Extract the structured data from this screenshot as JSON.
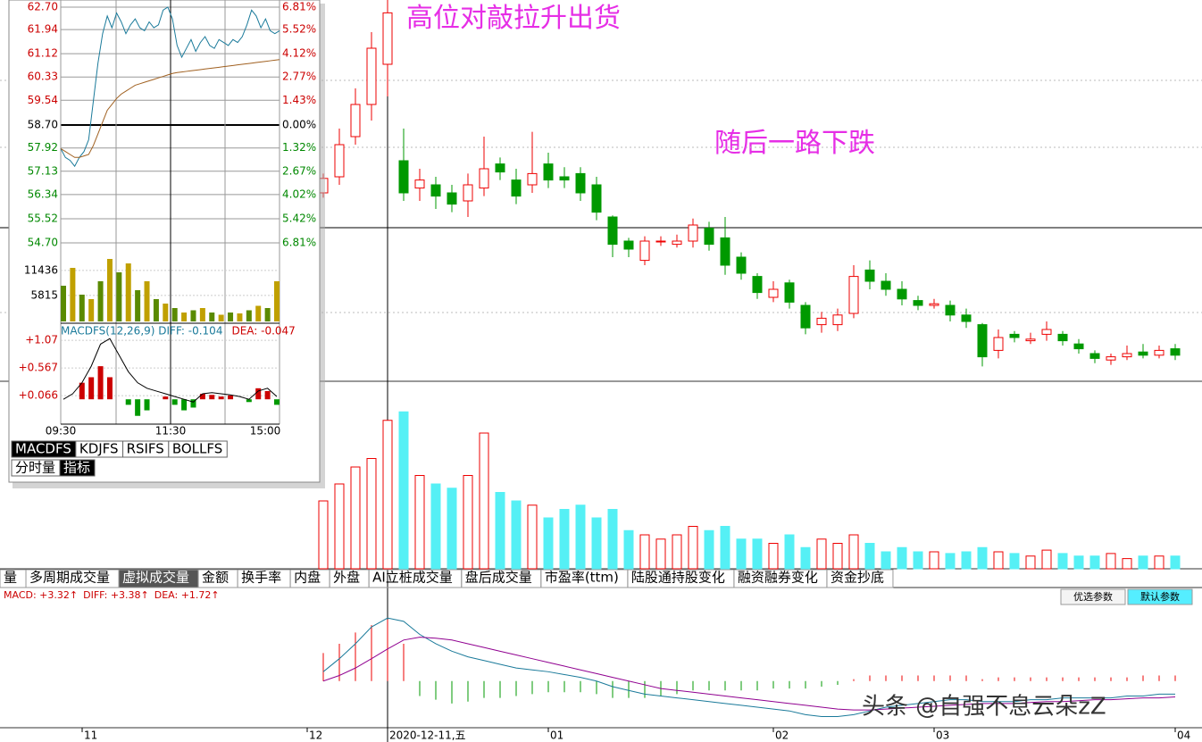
{
  "annotations": [
    "高位对敲拉升出货",
    "随后一路下跌"
  ],
  "main": {
    "ylim": [
      40,
      64
    ],
    "candles": [
      [
        52.0,
        53.2,
        51.7,
        52.9
      ],
      [
        53.0,
        56.0,
        52.5,
        55.0
      ],
      [
        55.5,
        58.5,
        55.0,
        57.5
      ],
      [
        57.5,
        62.0,
        56.5,
        61.0
      ],
      [
        60.0,
        64.0,
        58.0,
        63.2
      ],
      [
        54.0,
        56.0,
        51.5,
        52.0
      ],
      [
        52.3,
        53.5,
        51.5,
        52.8
      ],
      [
        52.5,
        53.0,
        51.0,
        51.8
      ],
      [
        52.0,
        52.5,
        50.8,
        51.3
      ],
      [
        51.5,
        53.2,
        50.5,
        52.5
      ],
      [
        52.3,
        55.5,
        51.8,
        53.5
      ],
      [
        53.8,
        54.2,
        52.8,
        53.3
      ],
      [
        52.8,
        53.5,
        51.3,
        51.8
      ],
      [
        52.5,
        55.8,
        52.0,
        53.2
      ],
      [
        53.8,
        54.5,
        52.3,
        52.8
      ],
      [
        53.0,
        53.6,
        52.3,
        52.8
      ],
      [
        53.2,
        53.6,
        51.5,
        52.0
      ],
      [
        52.5,
        53.0,
        50.3,
        50.8
      ],
      [
        50.5,
        50.6,
        48.0,
        48.8
      ],
      [
        49.0,
        49.2,
        48.0,
        48.5
      ],
      [
        47.8,
        49.3,
        47.5,
        49.0
      ],
      [
        49.0,
        49.3,
        48.7,
        49.0
      ],
      [
        48.8,
        49.4,
        48.6,
        49.0
      ],
      [
        49.0,
        50.4,
        48.6,
        50.0
      ],
      [
        49.8,
        50.2,
        48.4,
        48.8
      ],
      [
        49.2,
        50.5,
        46.9,
        47.5
      ],
      [
        48.0,
        48.3,
        46.6,
        47.0
      ],
      [
        46.8,
        47.0,
        45.4,
        45.8
      ],
      [
        45.5,
        46.5,
        45.2,
        46.0
      ],
      [
        46.4,
        46.6,
        44.8,
        45.2
      ],
      [
        45.0,
        45.2,
        43.2,
        43.6
      ],
      [
        43.8,
        44.6,
        43.3,
        44.2
      ],
      [
        43.8,
        44.8,
        43.4,
        44.4
      ],
      [
        44.5,
        47.5,
        44.2,
        46.8
      ],
      [
        47.2,
        47.8,
        46.0,
        46.5
      ],
      [
        46.5,
        47.0,
        45.6,
        46.0
      ],
      [
        46.0,
        46.5,
        45.0,
        45.4
      ],
      [
        45.3,
        45.6,
        44.7,
        45.0
      ],
      [
        45.0,
        45.4,
        44.8,
        45.1
      ],
      [
        45.0,
        45.3,
        44.0,
        44.4
      ],
      [
        44.4,
        44.8,
        43.6,
        44.0
      ],
      [
        43.8,
        43.9,
        41.2,
        41.8
      ],
      [
        42.2,
        43.5,
        41.7,
        43.0
      ],
      [
        43.2,
        43.4,
        42.7,
        43.0
      ],
      [
        42.8,
        43.3,
        42.6,
        42.9
      ],
      [
        43.2,
        44.0,
        42.8,
        43.5
      ],
      [
        43.2,
        43.4,
        42.5,
        42.8
      ],
      [
        42.6,
        42.9,
        42.0,
        42.3
      ],
      [
        42.0,
        42.2,
        41.4,
        41.7
      ],
      [
        41.6,
        42.0,
        41.3,
        41.8
      ],
      [
        41.8,
        42.5,
        41.6,
        42.0
      ],
      [
        42.1,
        42.6,
        41.7,
        41.9
      ],
      [
        41.9,
        42.5,
        41.7,
        42.2
      ],
      [
        42.3,
        42.6,
        41.6,
        41.9
      ]
    ],
    "volume_ylim": [
      0,
      200
    ],
    "volume": [
      80,
      100,
      120,
      130,
      175,
      185,
      110,
      100,
      95,
      110,
      160,
      90,
      80,
      75,
      60,
      70,
      75,
      60,
      70,
      45,
      40,
      35,
      40,
      50,
      45,
      50,
      35,
      35,
      30,
      40,
      25,
      35,
      30,
      40,
      30,
      20,
      25,
      20,
      20,
      18,
      20,
      25,
      20,
      18,
      15,
      22,
      18,
      15,
      15,
      18,
      12,
      15,
      15,
      15
    ]
  },
  "tabs": [
    "量",
    "多周期成交量",
    "虚拟成交量",
    "金额",
    "换手率",
    "内盘",
    "外盘",
    "AI立桩成交量",
    "盘后成交量",
    "市盈率(ttm)",
    "陆股通持股变化",
    "融资融券变化",
    "资金抄底"
  ],
  "macd": {
    "labels": [
      "MACD: +3.32↑",
      "DIFF: +3.38↑",
      "DEA: +1.72↑"
    ],
    "buttons": [
      "优选参数",
      "默认参数"
    ],
    "ylim": [
      -2.5,
      4.2
    ],
    "hist": [
      1.5,
      2.0,
      2.6,
      3.0,
      3.3,
      2.0,
      -0.8,
      -1.0,
      -1.2,
      -1.1,
      -0.9,
      -0.9,
      -0.8,
      -0.7,
      -0.6,
      -0.6,
      -0.6,
      -0.7,
      -0.9,
      -0.9,
      -0.9,
      -0.8,
      -0.7,
      -0.5,
      -0.5,
      -0.5,
      -0.5,
      -0.5,
      -0.4,
      -0.4,
      -0.4,
      -0.3,
      -0.2,
      0.1,
      0.3,
      0.3,
      0.3,
      0.3,
      0.3,
      0.3,
      0.3,
      0.1,
      0.2,
      0.2,
      0.2,
      0.2,
      0.2,
      0.2,
      0.2,
      0.2,
      0.2,
      0.3,
      0.3,
      0.3
    ],
    "diff": [
      0.5,
      1.2,
      2.0,
      2.9,
      3.38,
      3.2,
      2.5,
      2.0,
      1.6,
      1.3,
      1.1,
      0.9,
      0.7,
      0.6,
      0.5,
      0.35,
      0.2,
      0.0,
      -0.3,
      -0.5,
      -0.7,
      -0.8,
      -0.9,
      -1.0,
      -1.1,
      -1.2,
      -1.3,
      -1.4,
      -1.5,
      -1.6,
      -1.8,
      -1.9,
      -1.9,
      -1.8,
      -1.6,
      -1.4,
      -1.3,
      -1.2,
      -1.1,
      -1.0,
      -1.0,
      -1.1,
      -1.1,
      -1.1,
      -1.0,
      -1.0,
      -0.9,
      -0.9,
      -0.9,
      -0.9,
      -0.8,
      -0.8,
      -0.7,
      -0.7
    ],
    "dea": [
      0.0,
      0.3,
      0.7,
      1.2,
      1.72,
      2.2,
      2.35,
      2.3,
      2.2,
      2.0,
      1.8,
      1.6,
      1.4,
      1.2,
      1.0,
      0.8,
      0.6,
      0.4,
      0.2,
      0.0,
      -0.2,
      -0.4,
      -0.5,
      -0.6,
      -0.7,
      -0.8,
      -0.9,
      -1.0,
      -1.1,
      -1.2,
      -1.3,
      -1.4,
      -1.5,
      -1.55,
      -1.55,
      -1.5,
      -1.45,
      -1.4,
      -1.35,
      -1.3,
      -1.25,
      -1.2,
      -1.2,
      -1.2,
      -1.15,
      -1.1,
      -1.1,
      -1.05,
      -1.0,
      -1.0,
      -0.95,
      -0.9,
      -0.9,
      -0.85
    ]
  },
  "x_labels": [
    {
      "index": -15,
      "label": "11"
    },
    {
      "index": -1,
      "label": "12"
    },
    {
      "index": 4,
      "label": "2020-12-11,五"
    },
    {
      "index": 14,
      "label": "01"
    },
    {
      "index": 28,
      "label": "02"
    },
    {
      "index": 38,
      "label": "03"
    },
    {
      "index": 53,
      "label": "04"
    }
  ],
  "watermark": "头条 @自强不息云朵zZ",
  "popup": {
    "ylim": [
      54.7,
      62.7
    ],
    "yticks": [
      {
        "value": 62.7,
        "label": "62.70"
      },
      {
        "value": 61.94,
        "label": "61.94"
      },
      {
        "value": 61.12,
        "label": "61.12"
      },
      {
        "value": 60.33,
        "label": "60.33"
      },
      {
        "value": 59.54,
        "label": "59.54"
      },
      {
        "value": 58.7,
        "label": "58.70"
      },
      {
        "value": 57.92,
        "label": "57.92"
      },
      {
        "value": 57.13,
        "label": "57.13"
      },
      {
        "value": 56.34,
        "label": "56.34"
      },
      {
        "value": 55.52,
        "label": "55.52"
      },
      {
        "value": 54.7,
        "label": "54.70"
      }
    ],
    "pct_labels": [
      "6.81%",
      "5.52%",
      "4.12%",
      "2.77%",
      "1.43%",
      "0.00%",
      "1.32%",
      "2.67%",
      "4.02%",
      "5.42%",
      "6.81%"
    ],
    "price": [
      57.9,
      57.6,
      57.5,
      57.3,
      57.6,
      57.8,
      58.2,
      59.5,
      60.8,
      61.8,
      62.4,
      62.0,
      62.5,
      62.2,
      61.8,
      62.1,
      62.3,
      62.0,
      61.9,
      62.2,
      62.0,
      62.1,
      62.6,
      62.7,
      62.3,
      61.4,
      61.0,
      61.3,
      61.6,
      61.2,
      61.5,
      61.7,
      61.4,
      61.3,
      61.6,
      61.5,
      61.4,
      61.6,
      61.5,
      61.7,
      62.1,
      62.6,
      62.4,
      62.0,
      62.3,
      61.9,
      61.8,
      61.9
    ],
    "avg": [
      57.9,
      57.8,
      57.7,
      57.6,
      57.6,
      57.65,
      57.7,
      58.0,
      58.4,
      58.8,
      59.2,
      59.4,
      59.6,
      59.75,
      59.85,
      59.95,
      60.05,
      60.1,
      60.15,
      60.2,
      60.25,
      60.3,
      60.35,
      60.4,
      60.45,
      60.48,
      60.5,
      60.52,
      60.54,
      60.56,
      60.58,
      60.6,
      60.62,
      60.64,
      60.66,
      60.68,
      60.7,
      60.72,
      60.74,
      60.76,
      60.78,
      60.8,
      60.82,
      60.84,
      60.86,
      60.88,
      60.9,
      60.92
    ],
    "vol_ylim": [
      0,
      17000
    ],
    "vol_ticks": [
      11436,
      5815
    ],
    "volume": [
      8000,
      12000,
      6000,
      5000,
      9000,
      14000,
      11000,
      13000,
      7000,
      9000,
      5000,
      4000,
      3000,
      2000,
      2500,
      3000,
      2000,
      1500,
      2000,
      1800,
      2500,
      3500,
      3000,
      9000
    ],
    "macd_title": "MACDFS(12,26,9) DIFF: -0.104",
    "macd_dea": "DEA: -0.047",
    "macd_ylim": [
      -0.45,
      1.33
    ],
    "macd_ticks": [
      {
        "value": 1.07,
        "label": "+1.07"
      },
      {
        "value": 0.567,
        "label": "+0.567"
      },
      {
        "value": 0.066,
        "label": "+0.066"
      }
    ],
    "macd_hist": [
      0,
      0,
      0.3,
      0.4,
      0.6,
      0.4,
      0,
      -0.1,
      -0.3,
      -0.2,
      0,
      0.05,
      -0.1,
      -0.2,
      -0.15,
      0.1,
      0.08,
      0.05,
      0.07,
      0,
      -0.05,
      0.2,
      0.15,
      -0.1
    ],
    "macd_diff": [
      0,
      0.1,
      0.3,
      0.6,
      1.0,
      1.1,
      0.8,
      0.5,
      0.3,
      0.2,
      0.15,
      0.1,
      0.05,
      0,
      -0.05,
      0.1,
      0.12,
      0.1,
      0.08,
      0.05,
      0,
      0.15,
      0.2,
      0.05
    ],
    "times": [
      "09:30",
      "11:30",
      "15:00"
    ],
    "tabs": [
      "MACDFS",
      "KDJFS",
      "RSIFS",
      "BOLLFS"
    ],
    "tabs2": [
      "分时量",
      "指标"
    ]
  }
}
